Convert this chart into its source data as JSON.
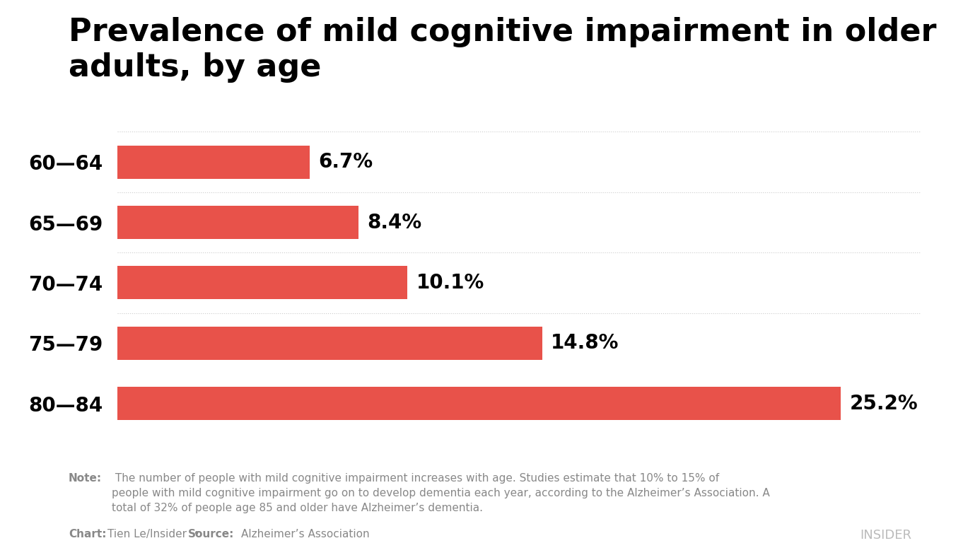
{
  "title": "Prevalence of mild cognitive impairment in older\nadults, by age",
  "categories": [
    "60—64",
    "65—69",
    "70—74",
    "75—79",
    "80—84"
  ],
  "values": [
    6.7,
    8.4,
    10.1,
    14.8,
    25.2
  ],
  "labels": [
    "6.7%",
    "8.4%",
    "10.1%",
    "14.8%",
    "25.2%"
  ],
  "bar_color": "#E8524A",
  "background_color": "#ffffff",
  "title_fontsize": 32,
  "label_fontsize": 20,
  "tick_fontsize": 20,
  "xlim": [
    0,
    28
  ],
  "note_bold": "Note:",
  "note_text": " The number of people with mild cognitive impairment increases with age. Studies estimate that 10% to 15% of\npeople with mild cognitive impairment go on to develop dementia each year, according to the Alzheimer’s Association. A\ntotal of 32% of people age 85 and older have Alzheimer’s dementia.",
  "chart_credit": "Tien Le/Insider",
  "source_credit": "Alzheimer’s Association",
  "insider_logo": "INSIDER"
}
